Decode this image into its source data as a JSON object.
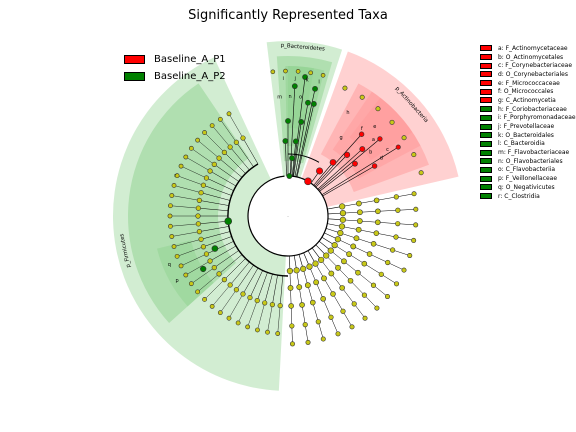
{
  "title": "Significantly Represented Taxa",
  "colors": {
    "p1": "#ff0000",
    "p2": "#008000",
    "neutral_node": "#c8c818",
    "p1_shade": "#ff9a9a",
    "p2_shade": "#8ed28e"
  },
  "legend": [
    {
      "name": "Baseline_A_P1",
      "color": "#ff0000"
    },
    {
      "name": "Baseline_A_P2",
      "color": "#008000"
    }
  ],
  "taxa_legend": [
    {
      "letter": "a",
      "label": "a: F_Actinomycetaceae",
      "group": "p1"
    },
    {
      "letter": "b",
      "label": "b: O_Actinomycetales",
      "group": "p1"
    },
    {
      "letter": "c",
      "label": "c: F_Corynebacteriaceae",
      "group": "p1"
    },
    {
      "letter": "d",
      "label": "d: O_Corynebacteriales",
      "group": "p1"
    },
    {
      "letter": "e",
      "label": "e: F_Micrococcaceae",
      "group": "p1"
    },
    {
      "letter": "f",
      "label": "f: O_Micrococcales",
      "group": "p1"
    },
    {
      "letter": "g",
      "label": "g: C_Actinomycetia",
      "group": "p1"
    },
    {
      "letter": "h",
      "label": "h: F_Coriobacteriaceae",
      "group": "p2"
    },
    {
      "letter": "i",
      "label": "i: F_Porphyromonadaceae",
      "group": "p2"
    },
    {
      "letter": "j",
      "label": "j: F_Prevotellaceae",
      "group": "p2"
    },
    {
      "letter": "k",
      "label": "k: O_Bacteroidales",
      "group": "p2"
    },
    {
      "letter": "l",
      "label": "l: C_Bacteroidia",
      "group": "p2"
    },
    {
      "letter": "m",
      "label": "m: F_Flavobacteriaceae",
      "group": "p2"
    },
    {
      "letter": "n",
      "label": "n: O_Flavobacteriales",
      "group": "p2"
    },
    {
      "letter": "o",
      "label": "o: C_Flavobacteriia",
      "group": "p2"
    },
    {
      "letter": "p",
      "label": "p: F_Veillonellaceae",
      "group": "p2"
    },
    {
      "letter": "q",
      "label": "q: O_Negativicutes",
      "group": "p2"
    },
    {
      "letter": "r",
      "label": "r: C_Clostridia",
      "group": "p2"
    }
  ],
  "phylum_labels": {
    "bacteroidetes": "p_Bacteroidetes",
    "actinobacteria": "p_Actinobacteria",
    "firmicutes": "p_Firmicutes"
  },
  "center_dot": "."
}
